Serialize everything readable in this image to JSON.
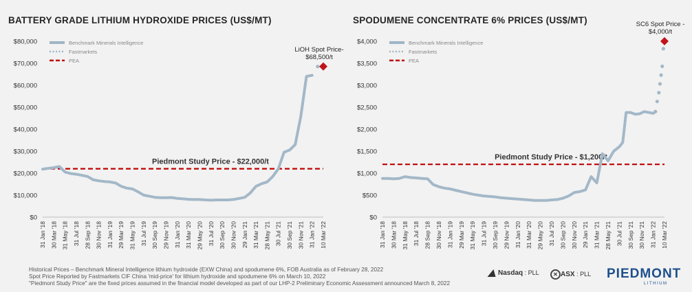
{
  "charts": [
    {
      "type": "line",
      "title": "BATTERY GRADE LITHIUM HYDROXIDE PRICES (US$/MT)",
      "ylim": [
        0,
        80000
      ],
      "yticks": [
        0,
        10000,
        20000,
        30000,
        40000,
        50000,
        60000,
        70000,
        80000
      ],
      "ytick_labels": [
        "$0",
        "$10,000",
        "$20,000",
        "$30,000",
        "$40,000",
        "$50,000",
        "$60,000",
        "$70,000",
        "$80,000"
      ],
      "categories": [
        "31 Jan '18",
        "30 Mar '18",
        "31 May '18",
        "31 Jul '18",
        "28 Sep '18",
        "30 Nov '18",
        "31 Jan '19",
        "29 Mar '19",
        "31 May '19",
        "31 Jul '19",
        "30 Sep '19",
        "29 Nov '19",
        "31 Jan '20",
        "31 Mar '20",
        "29 May '20",
        "31 Jul '20",
        "30 Sep '20",
        "30 Nov '20",
        "29 Jan '21",
        "31 Mar '21",
        "28 May '21",
        "30 Jul '21",
        "30 Sep '21",
        "30 Nov '21",
        "31 Jan '22",
        "10 Mar '22"
      ],
      "legend": [
        {
          "label": "Benchmark Minerals Intelligence",
          "style": "solid",
          "color": "#9fb5c6"
        },
        {
          "label": "Fastmarkets",
          "style": "dotted",
          "color": "#9fb5c6"
        },
        {
          "label": "PEA",
          "style": "dashed",
          "color": "#c00000"
        }
      ],
      "series": [
        {
          "name": "Benchmark Minerals Intelligence",
          "x": [
            0,
            0.5,
            1,
            1.5,
            2,
            2.5,
            3,
            3.5,
            4,
            4.5,
            5,
            5.5,
            6,
            6.5,
            7,
            7.5,
            8,
            8.5,
            9,
            9.5,
            10,
            10.5,
            11,
            11.5,
            12,
            12.5,
            13,
            13.5,
            14,
            14.5,
            15,
            15.5,
            16,
            16.5,
            17,
            17.5,
            18,
            18.5,
            19,
            19.5,
            20,
            20.5,
            21,
            21.5,
            22,
            22.5,
            23,
            23.5,
            24
          ],
          "values": [
            21800,
            22200,
            22500,
            23000,
            20500,
            19800,
            19500,
            19000,
            18500,
            17000,
            16500,
            16200,
            16000,
            15500,
            14000,
            13200,
            12800,
            11500,
            10000,
            9500,
            9000,
            8800,
            8800,
            8900,
            8500,
            8300,
            8100,
            8000,
            8000,
            7800,
            7700,
            7800,
            7800,
            7800,
            8000,
            8500,
            9000,
            11000,
            14000,
            15200,
            16000,
            18500,
            22000,
            29500,
            30500,
            33000,
            46000,
            64000,
            64500
          ]
        },
        {
          "name": "Fastmarkets",
          "x": [
            24.5
          ],
          "values": [
            68500
          ]
        }
      ],
      "pea_value": 22000,
      "pea_label": "Piedmont Study Price - $22,000/t",
      "spot": {
        "x": 25,
        "value": 68500,
        "label_line1": "LiOH Spot Price-",
        "label_line2": "$68,500/t"
      }
    },
    {
      "type": "line",
      "title": "SPODUMENE CONCENTRATE 6% PRICES (US$/MT)",
      "ylim": [
        0,
        4000
      ],
      "yticks": [
        0,
        500,
        1000,
        1500,
        2000,
        2500,
        3000,
        3500,
        4000
      ],
      "ytick_labels": [
        "$0",
        "$500",
        "$1,000",
        "$1,500",
        "$2,000",
        "$2,500",
        "$3,000",
        "$3,500",
        "$4,000"
      ],
      "categories": [
        "31 Jan '18",
        "30 Mar '18",
        "31 May '18",
        "31 Jul '18",
        "28 Sep '18",
        "30 Nov '18",
        "31 Jan '19",
        "29 Mar '19",
        "31 May '19",
        "31 Jul '19",
        "30 Sep '19",
        "29 Nov '19",
        "31 Jan '20",
        "31 Mar '20",
        "29 May '20",
        "31 Jul '20",
        "30 Sep '20",
        "30 Nov '20",
        "29 Jan '21",
        "31 Mar '21",
        "28 May '21",
        "30 Jul '21",
        "30 Sep '21",
        "30 Nov '21",
        "31 Jan '22",
        "10 Mar '22"
      ],
      "legend": [
        {
          "label": "Benchmark Minerals Intelligence",
          "style": "solid",
          "color": "#9fb5c6"
        },
        {
          "label": "Fastmarkets",
          "style": "dotted",
          "color": "#9fb5c6"
        },
        {
          "label": "PEA",
          "style": "dashed",
          "color": "#c00000"
        }
      ],
      "series": [
        {
          "name": "Benchmark Minerals Intelligence",
          "x": [
            0,
            0.5,
            1,
            1.5,
            2,
            2.5,
            3,
            3.5,
            4,
            4.5,
            5,
            5.5,
            6,
            6.5,
            7,
            7.5,
            8,
            8.5,
            9,
            9.5,
            10,
            10.5,
            11,
            11.5,
            12,
            12.5,
            13,
            13.5,
            14,
            14.5,
            15,
            15.5,
            16,
            16.5,
            17,
            17.5,
            18,
            18.5,
            19,
            19.5,
            20,
            20.5,
            21,
            21.3,
            21.6,
            22,
            22.4,
            22.8,
            23.2,
            23.6,
            24,
            24.2
          ],
          "values": [
            880,
            880,
            870,
            880,
            920,
            900,
            890,
            880,
            870,
            740,
            690,
            660,
            640,
            610,
            580,
            550,
            520,
            500,
            480,
            470,
            460,
            440,
            430,
            420,
            410,
            400,
            390,
            380,
            380,
            380,
            390,
            400,
            430,
            480,
            560,
            580,
            620,
            920,
            780,
            1440,
            1280,
            1500,
            1600,
            1700,
            2380,
            2380,
            2340,
            2350,
            2400,
            2380,
            2360,
            2400
          ]
        },
        {
          "name": "Fastmarkets",
          "x": [
            24.2,
            24.35,
            24.5,
            24.6,
            24.7,
            24.8,
            24.9
          ],
          "values": [
            2400,
            2630,
            2830,
            3030,
            3230,
            3430,
            3830
          ]
        }
      ],
      "pea_value": 1200,
      "pea_label": "Piedmont Study Price - $1,200/t",
      "spot": {
        "x": 25,
        "value": 4000,
        "label_line1": "SC6 Spot Price -",
        "label_line2": "$4,000/t"
      }
    }
  ],
  "footnotes": [
    "Historical Prices – Benchmark Mineral Intelligence lithium hydroxide (EXW China) and spodumene 6%, FOB Australia as of February 28, 2022",
    "Spot Price Reported by Fastmarkets CIF China 'mid-price' for lithium hydroxide and spodumene 6% on March 10, 2022",
    "\"Piedmont Study Price\" are the fixed prices assumed in the financial model developed as part of our LHP-2 Preliminary Economic Assessment announced March 8, 2022"
  ],
  "logos": {
    "nasdaq_name": "Nasdaq",
    "nasdaq_ticker": ": PLL",
    "asx_name": "ASX",
    "asx_ticker": ": PLL",
    "company": "PIEDMONT",
    "company_sub": "LITHIUM"
  }
}
